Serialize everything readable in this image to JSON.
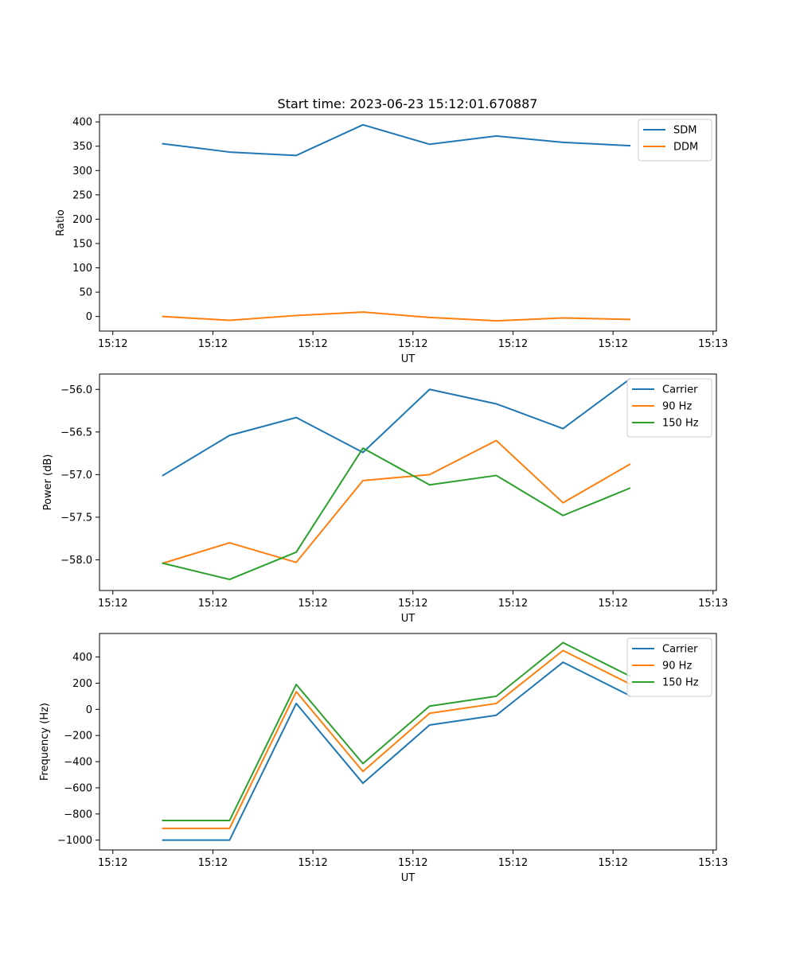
{
  "figure": {
    "title": "Start time: 2023-06-23 15:12:01.670887"
  },
  "chart_data": [
    {
      "type": "line",
      "title": "Start time: 2023-06-23 15:12:01.670887",
      "xlabel": "UT",
      "ylabel": "Ratio",
      "x_tick_labels": [
        "15:12",
        "15:12",
        "15:12",
        "15:12",
        "15:12",
        "15:12",
        "15:13"
      ],
      "x_tick_values": [
        0,
        1.5,
        3,
        4.5,
        6,
        7.5,
        9
      ],
      "x_range": [
        -0.2,
        9.05
      ],
      "x": [
        0.75,
        1.75,
        2.75,
        3.75,
        4.75,
        5.75,
        6.75,
        7.75
      ],
      "y_ticks": [
        0,
        50,
        100,
        150,
        200,
        250,
        300,
        350,
        400
      ],
      "ylim": [
        -30,
        415
      ],
      "legend_position": "top-right",
      "series": [
        {
          "name": "SDM",
          "color": "#1f77b4",
          "values": [
            355,
            338,
            331,
            394,
            354,
            371,
            358,
            351
          ]
        },
        {
          "name": "DDM",
          "color": "#ff7f0e",
          "values": [
            0,
            -8,
            2,
            9,
            -2,
            -9,
            -3,
            -6
          ]
        }
      ]
    },
    {
      "type": "line",
      "xlabel": "UT",
      "ylabel": "Power (dB)",
      "x_tick_labels": [
        "15:12",
        "15:12",
        "15:12",
        "15:12",
        "15:12",
        "15:12",
        "15:13"
      ],
      "x_tick_values": [
        0,
        1.5,
        3,
        4.5,
        6,
        7.5,
        9
      ],
      "x_range": [
        -0.2,
        9.05
      ],
      "x": [
        0.75,
        1.75,
        2.75,
        3.75,
        4.75,
        5.75,
        6.75,
        7.75
      ],
      "y_ticks": [
        -58.0,
        -57.5,
        -57.0,
        -56.5,
        -56.0
      ],
      "y_tick_labels": [
        "−58.0",
        "−57.5",
        "−57.0",
        "−56.5",
        "−56.0"
      ],
      "ylim": [
        -58.36,
        -55.82
      ],
      "legend_position": "top-right",
      "series": [
        {
          "name": "Carrier",
          "color": "#1f77b4",
          "values": [
            -57.01,
            -56.54,
            -56.33,
            -56.74,
            -56.0,
            -56.17,
            -56.46,
            -55.88
          ]
        },
        {
          "name": "90 Hz",
          "color": "#ff7f0e",
          "values": [
            -58.04,
            -57.8,
            -58.03,
            -57.07,
            -57.0,
            -56.6,
            -57.33,
            -56.88
          ]
        },
        {
          "name": "150 Hz",
          "color": "#2ca02c",
          "values": [
            -58.04,
            -58.23,
            -57.91,
            -56.69,
            -57.12,
            -57.01,
            -57.48,
            -57.16
          ]
        }
      ]
    },
    {
      "type": "line",
      "xlabel": "UT",
      "ylabel": "Frequency (Hz)",
      "x_tick_labels": [
        "15:12",
        "15:12",
        "15:12",
        "15:12",
        "15:12",
        "15:12",
        "15:13"
      ],
      "x_tick_values": [
        0,
        1.5,
        3,
        4.5,
        6,
        7.5,
        9
      ],
      "x_range": [
        -0.2,
        9.05
      ],
      "x": [
        0.75,
        1.75,
        2.75,
        3.75,
        4.75,
        5.75,
        6.75,
        7.75
      ],
      "y_ticks": [
        -1000,
        -800,
        -600,
        -400,
        -200,
        0,
        200,
        400
      ],
      "y_tick_labels": [
        "−1000",
        "−800",
        "−600",
        "−400",
        "−200",
        "0",
        "200",
        "400"
      ],
      "ylim": [
        -1075,
        580
      ],
      "legend_position": "top-right",
      "series": [
        {
          "name": "Carrier",
          "color": "#1f77b4",
          "values": [
            -1000,
            -1000,
            45,
            -565,
            -120,
            -45,
            360,
            105
          ]
        },
        {
          "name": "90 Hz",
          "color": "#ff7f0e",
          "values": [
            -910,
            -910,
            135,
            -475,
            -30,
            45,
            450,
            195
          ]
        },
        {
          "name": "150 Hz",
          "color": "#2ca02c",
          "values": [
            -850,
            -850,
            190,
            -415,
            25,
            100,
            510,
            255
          ]
        }
      ]
    }
  ]
}
